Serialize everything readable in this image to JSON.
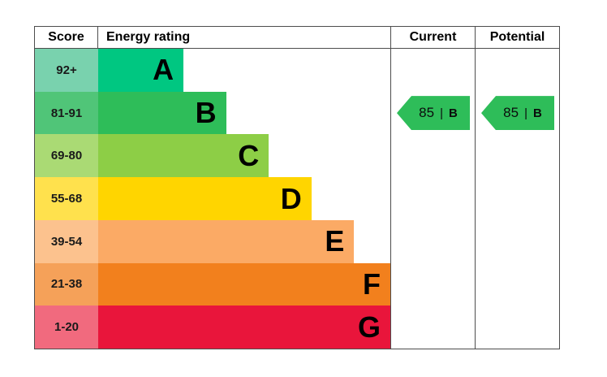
{
  "header": {
    "score": "Score",
    "rating": "Energy rating",
    "current": "Current",
    "potential": "Potential"
  },
  "bands": [
    {
      "score": "92+",
      "letter": "A",
      "bar_color": "#00c781",
      "score_color": "#79d2ae",
      "width": "24%"
    },
    {
      "score": "81-91",
      "letter": "B",
      "bar_color": "#2ebd59",
      "score_color": "#50c578",
      "width": "36%"
    },
    {
      "score": "69-80",
      "letter": "C",
      "bar_color": "#8dce46",
      "score_color": "#aada74",
      "width": "48%"
    },
    {
      "score": "55-68",
      "letter": "D",
      "bar_color": "#ffd500",
      "score_color": "#ffe14d",
      "width": "60%"
    },
    {
      "score": "39-54",
      "letter": "E",
      "bar_color": "#fbaa65",
      "score_color": "#fcc28e",
      "width": "72%"
    },
    {
      "score": "21-38",
      "letter": "F",
      "bar_color": "#f2801d",
      "score_color": "#f5a159",
      "width": "84%"
    },
    {
      "score": "1-20",
      "letter": "G",
      "bar_color": "#e9153b",
      "score_color": "#f16a7e",
      "width": "96%"
    }
  ],
  "current": {
    "value": "85",
    "divider": "|",
    "letter": "B",
    "color": "#2ebd59",
    "band_index": 1
  },
  "potential": {
    "value": "85",
    "divider": "|",
    "letter": "B",
    "color": "#2ebd59",
    "band_index": 1
  },
  "chart_data": {
    "type": "bar",
    "title": "EPC Energy rating chart",
    "categories": [
      "A",
      "B",
      "C",
      "D",
      "E",
      "F",
      "G"
    ],
    "score_ranges": [
      "92+",
      "81-91",
      "69-80",
      "55-68",
      "39-54",
      "21-38",
      "1-20"
    ],
    "values": [
      24,
      36,
      48,
      60,
      72,
      84,
      96
    ],
    "bar_colors": [
      "#00c781",
      "#2ebd59",
      "#8dce46",
      "#ffd500",
      "#fbaa65",
      "#f2801d",
      "#e9153b"
    ],
    "xlabel": "Score",
    "ylabel": "Energy rating",
    "legend_position": "none",
    "current": {
      "value": 85,
      "rating": "B"
    },
    "potential": {
      "value": 85,
      "rating": "B"
    }
  }
}
